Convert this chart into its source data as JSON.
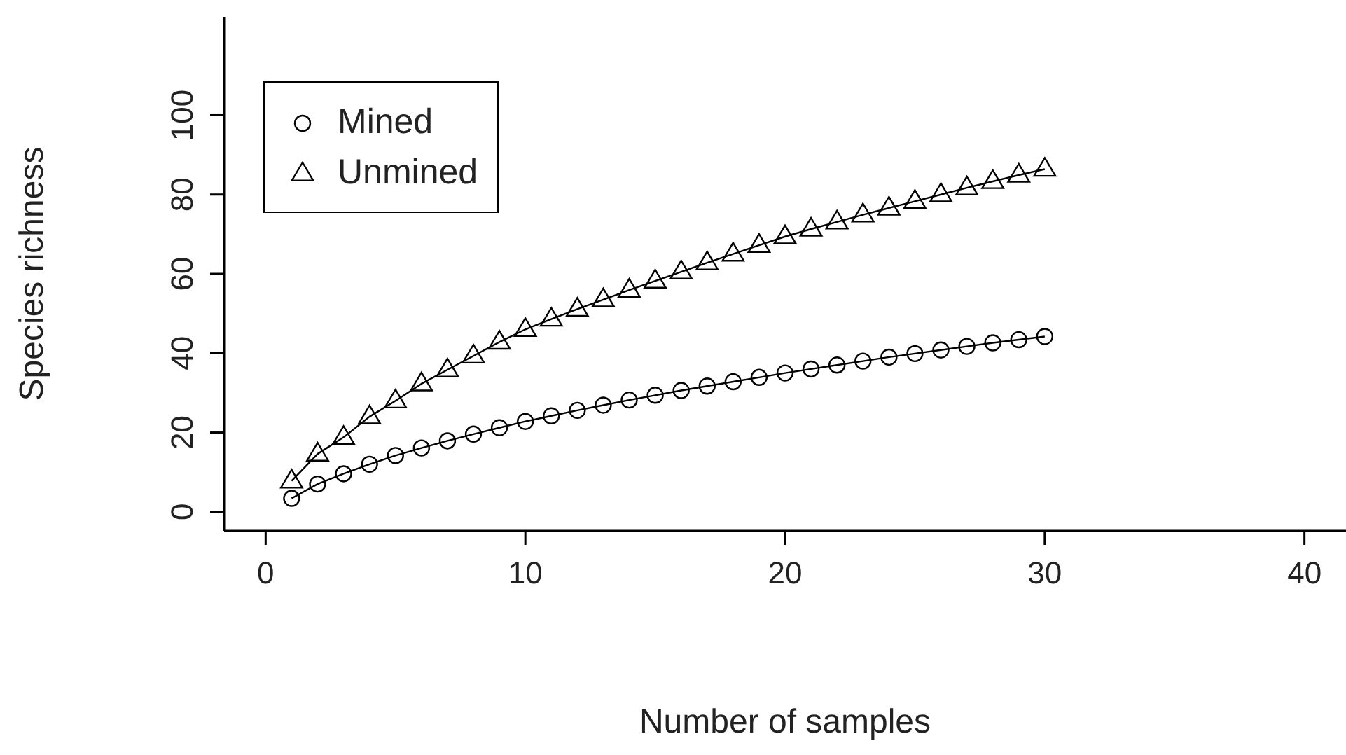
{
  "chart_data": {
    "type": "line",
    "xlabel": "Number of samples",
    "ylabel": "Species richness",
    "x": [
      1,
      2,
      3,
      4,
      5,
      6,
      7,
      8,
      9,
      10,
      11,
      12,
      13,
      14,
      15,
      16,
      17,
      18,
      19,
      20,
      21,
      22,
      23,
      24,
      25,
      26,
      27,
      28,
      29,
      30
    ],
    "series": [
      {
        "name": "Mined",
        "color": "#000000",
        "marker": "circle",
        "values": [
          3.4,
          7,
          9.6,
          12,
          14.2,
          16.1,
          17.9,
          19.6,
          21.2,
          22.8,
          24.2,
          25.6,
          26.9,
          28.2,
          29.4,
          30.6,
          31.7,
          32.8,
          33.9,
          35,
          36,
          37,
          38,
          39,
          39.9,
          40.8,
          41.7,
          42.6,
          43.4,
          44.2
        ]
      },
      {
        "name": "Unmined",
        "color": "#000000",
        "marker": "triangle",
        "values": [
          7.8,
          14.6,
          18.8,
          24,
          28,
          32.3,
          35.8,
          39.3,
          42.8,
          46,
          48.6,
          51.1,
          53.5,
          55.9,
          58.2,
          60.5,
          62.8,
          65,
          67.2,
          69.4,
          71.3,
          73.1,
          74.9,
          76.6,
          78.3,
          80,
          81.7,
          83.3,
          84.9,
          86.4
        ]
      }
    ],
    "xlim": [
      -1.6,
      41.6
    ],
    "xticks": [
      0,
      10,
      20,
      30,
      40
    ],
    "ylim": [
      -4.8,
      124.8
    ],
    "yticks": [
      0,
      20,
      40,
      60,
      80,
      100
    ],
    "tick_labels": true,
    "grid": false,
    "legend": "top left",
    "line_style": "solid"
  }
}
